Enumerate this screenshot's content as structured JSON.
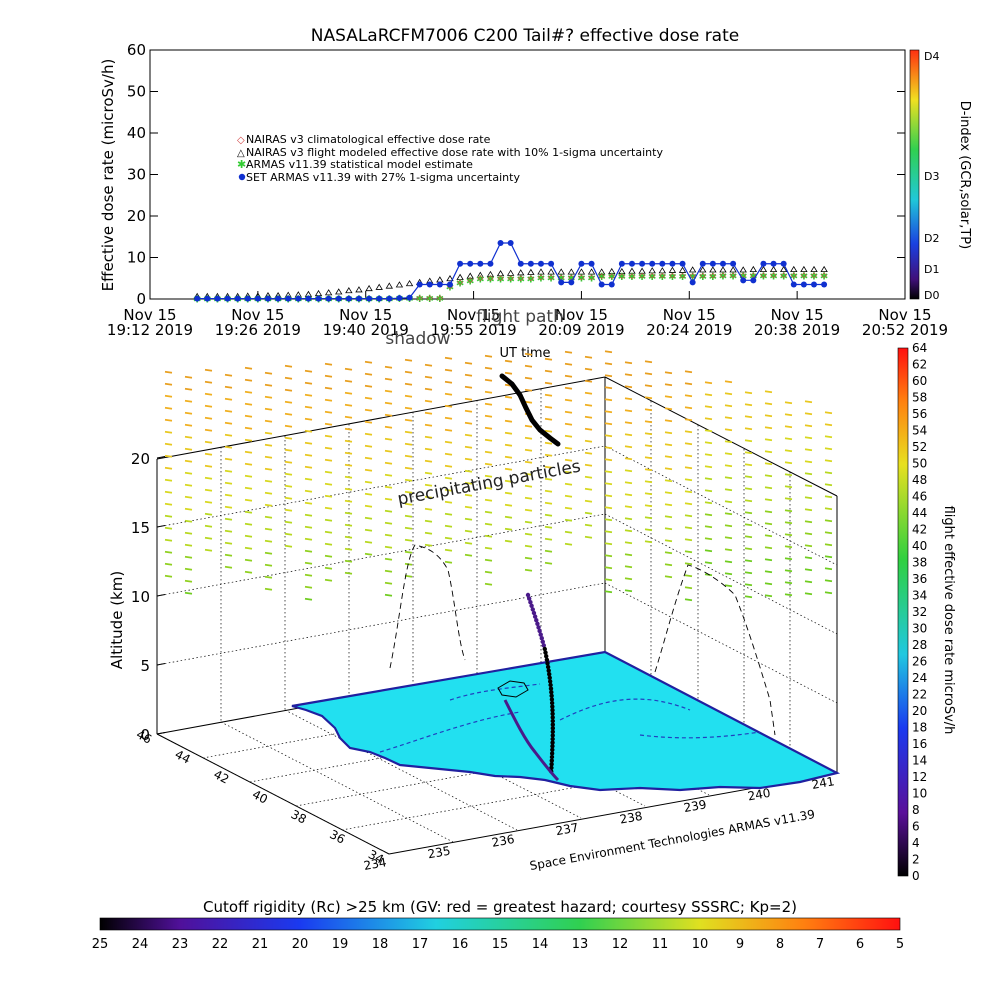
{
  "top_chart": {
    "title": "NASALaRCFM7006  C200 Tail#? effective dose rate",
    "ylabel": "Effective dose rate (microSv/h)",
    "xlabel": "UT time",
    "ylim": [
      0,
      60
    ],
    "yticks": [
      "0",
      "10",
      "20",
      "30",
      "40",
      "50",
      "60"
    ],
    "xtick_labels": [
      [
        "Nov 15",
        "19:12 2019"
      ],
      [
        "Nov 15",
        "19:26 2019"
      ],
      [
        "Nov 15",
        "19:40 2019"
      ],
      [
        "Nov 15",
        "19:55 2019"
      ],
      [
        "Nov 15",
        "20:09 2019"
      ],
      [
        "Nov 15",
        "20:24 2019"
      ],
      [
        "Nov 15",
        "20:38 2019"
      ],
      [
        "Nov 15",
        "20:52 2019"
      ]
    ],
    "legend": [
      {
        "label": "NAIRAS v3 climatological effective dose rate",
        "marker": "diamond",
        "color": "#d04040"
      },
      {
        "label": "NAIRAS v3 flight modeled effective dose rate with 10% 1-sigma uncertainty",
        "marker": "triangle",
        "color": "#000000"
      },
      {
        "label": "ARMAS v11.39 statistical model estimate",
        "marker": "asterisk",
        "color": "#33cc33"
      },
      {
        "label": "SET ARMAS v11.39 with 27% 1-sigma uncertainty",
        "marker": "dot",
        "color": "#1030d0"
      }
    ],
    "overlay_labels": [
      "flight path",
      "shadow"
    ],
    "dindex_colorbar": {
      "label": "D-index (GCR,solar,TP)",
      "ticks": [
        "D4",
        "D3",
        "D2",
        "D1",
        "D0"
      ]
    }
  },
  "chart_data": [
    {
      "type": "line",
      "title": "NASALaRCFM7006  C200 Tail#? effective dose rate",
      "xlabel": "UT time",
      "ylabel": "Effective dose rate (microSv/h)",
      "ylim": [
        0,
        60
      ],
      "x_range": [
        "19:12",
        "20:52"
      ],
      "x_unit": "minutes since 19:12 UT",
      "x": [
        14,
        17,
        20,
        23,
        26,
        29,
        32,
        35,
        38,
        41,
        44,
        47,
        50,
        53,
        56,
        59,
        62,
        65,
        68,
        71,
        74,
        77,
        80,
        83,
        86,
        89,
        92,
        95,
        98,
        101,
        104,
        107,
        110,
        113,
        116,
        119,
        122,
        125,
        128,
        131,
        134,
        137,
        140,
        143,
        146,
        149,
        152,
        155,
        158,
        161,
        164,
        167,
        170,
        173,
        176,
        179,
        182,
        185,
        188,
        191,
        194,
        197,
        200
      ],
      "series": [
        {
          "name": "SET ARMAS v11.39 with 27% 1-sigma uncertainty",
          "values": [
            0.1,
            0.1,
            0.1,
            0.1,
            0.1,
            0.1,
            0.1,
            0.1,
            0.1,
            0.1,
            0.1,
            0.1,
            0.1,
            0.1,
            0.1,
            0.1,
            0.1,
            0.1,
            0.1,
            0.1,
            0.2,
            0.3,
            3.5,
            3.5,
            3.5,
            3.5,
            8.5,
            8.5,
            8.5,
            8.5,
            13.5,
            13.5,
            8.5,
            8.5,
            8.5,
            8.5,
            4.0,
            4.0,
            8.5,
            8.5,
            3.5,
            3.5,
            8.5,
            8.5,
            8.5,
            8.5,
            8.5,
            8.5,
            8.5,
            4.0,
            8.5,
            8.5,
            8.5,
            8.5,
            4.5,
            4.5,
            8.5,
            8.5,
            8.5,
            3.5,
            3.5,
            3.5,
            3.5
          ]
        },
        {
          "name": "NAIRAS v3 flight modeled effective dose rate with 10% 1-sigma uncertainty",
          "values": [
            0.1,
            0.1,
            0.1,
            0.1,
            0.1,
            0.2,
            0.2,
            0.3,
            0.3,
            0.4,
            0.5,
            0.6,
            0.8,
            1.0,
            1.2,
            1.5,
            1.7,
            2.0,
            2.3,
            2.6,
            2.9,
            3.2,
            3.5,
            3.8,
            4.1,
            4.4,
            4.7,
            5.0,
            5.2,
            5.4,
            5.6,
            5.7,
            5.8,
            5.9,
            6.0,
            6.0,
            6.0,
            6.0,
            6.0,
            6.0,
            6.0,
            6.1,
            6.1,
            6.2,
            6.2,
            6.3,
            6.3,
            6.4,
            6.4,
            6.5,
            6.5,
            6.5,
            6.5,
            6.5,
            6.5,
            6.6,
            6.6,
            6.6,
            6.6,
            6.6,
            6.6,
            6.6,
            6.6
          ]
        },
        {
          "name": "ARMAS v11.39 statistical model estimate",
          "values": [
            0.1,
            0.1,
            0.1,
            0.1,
            0.1,
            0.1,
            0.1,
            0.1,
            0.1,
            0.1,
            0.1,
            0.1,
            0.1,
            0.1,
            0.1,
            0.1,
            0.1,
            0.1,
            0.1,
            0.1,
            0.2,
            0.2,
            0.2,
            0.2,
            0.2,
            3.0,
            4.0,
            4.5,
            5.0,
            5.0,
            5.0,
            5.0,
            5.0,
            5.0,
            5.2,
            5.2,
            5.2,
            5.2,
            5.2,
            5.2,
            5.5,
            5.5,
            5.5,
            5.5,
            5.6,
            5.6,
            5.6,
            5.6,
            5.6,
            5.6,
            5.6,
            5.6,
            5.7,
            5.7,
            5.7,
            5.7,
            5.7,
            5.7,
            5.7,
            5.7,
            5.7,
            5.7,
            5.7
          ]
        },
        {
          "name": "NAIRAS v3 climatological effective dose rate",
          "values": [
            0.1,
            0.1,
            0.1,
            0.1,
            0.1,
            0.1,
            0.1,
            0.1,
            0.1,
            0.1,
            0.1,
            0.1,
            0.1,
            0.1,
            0.1,
            0.1,
            0.1,
            0.1,
            0.1,
            0.1,
            0.2,
            0.2,
            0.2,
            0.2,
            0.2,
            3.0,
            4.0,
            4.5,
            5.0,
            5.0,
            5.0,
            5.0,
            5.0,
            5.0,
            5.2,
            5.2,
            5.2,
            5.2,
            5.2,
            5.2,
            5.5,
            5.5,
            5.5,
            5.5,
            5.6,
            5.6,
            5.6,
            5.6,
            5.6,
            5.6,
            5.6,
            5.6,
            5.7,
            5.7,
            5.7,
            5.7,
            5.7,
            5.7,
            5.7,
            5.7,
            5.7,
            5.7,
            5.7
          ]
        }
      ]
    },
    {
      "type": "scatter",
      "title": "",
      "zlabel": "Altitude (km)",
      "z_ticks": [
        "0",
        "5",
        "10",
        "15",
        "20"
      ],
      "lat_ticks": [
        "34",
        "36",
        "38",
        "40",
        "42",
        "44",
        "46"
      ],
      "lon_ticks": [
        "234",
        "235",
        "236",
        "237",
        "238",
        "239",
        "240",
        "241"
      ],
      "credit": "Space Environment Technologies ARMAS v11.39",
      "annotation": "precipitating particles",
      "flight_dose_colorbar": {
        "label": "flight effective dose rate microSv/h",
        "range": [
          0,
          64
        ],
        "ticks": [
          "0",
          "2",
          "4",
          "6",
          "8",
          "10",
          "12",
          "14",
          "16",
          "18",
          "20",
          "22",
          "24",
          "26",
          "28",
          "30",
          "32",
          "34",
          "36",
          "38",
          "40",
          "42",
          "44",
          "46",
          "48",
          "50",
          "52",
          "54",
          "56",
          "58",
          "60",
          "62",
          "64"
        ]
      }
    }
  ],
  "bottom_colorbar": {
    "title": "Cutoff rigidity (Rc) >25 km (GV: red = greatest hazard; courtesy SSSRC; Kp=2)",
    "ticks": [
      "25",
      "24",
      "23",
      "22",
      "21",
      "20",
      "19",
      "18",
      "17",
      "16",
      "15",
      "14",
      "13",
      "12",
      "11",
      "10",
      "9",
      "8",
      "7",
      "6",
      "5"
    ]
  },
  "colors": {
    "armas_series": "#1030d0",
    "nairas_flight": "#000000",
    "armas_model": "#33cc33",
    "nairas_climo": "#d04040",
    "ground_fill": "#22e0f0",
    "coast": "#2020a0"
  }
}
